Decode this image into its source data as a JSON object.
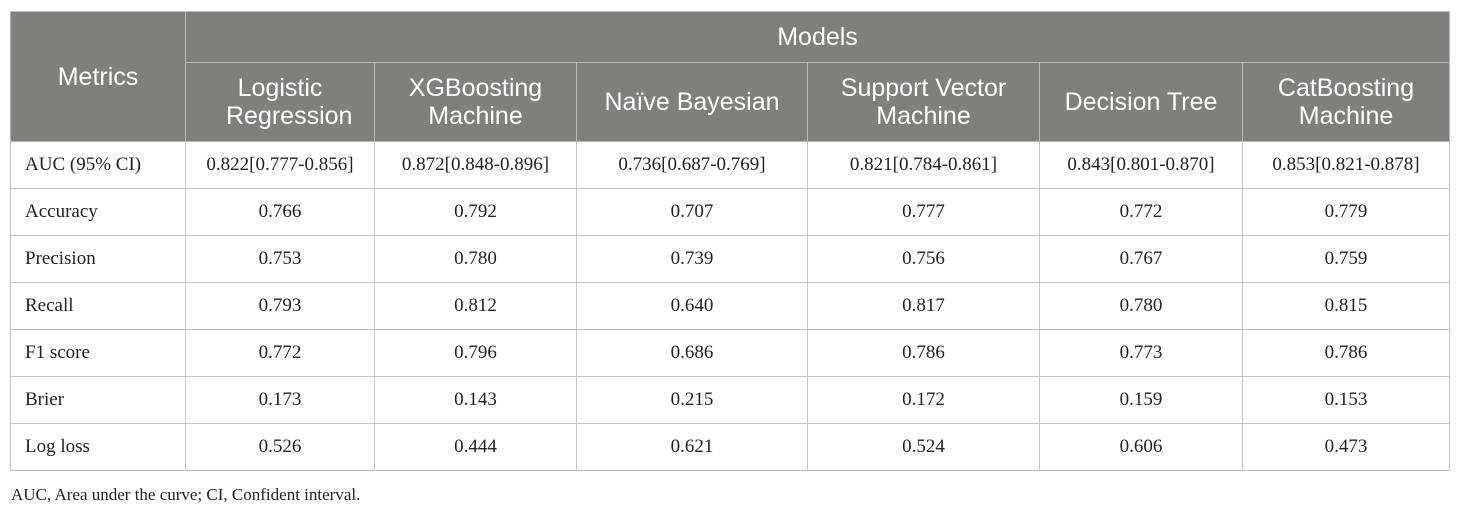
{
  "table": {
    "metrics_header": "Metrics",
    "models_header": "Models",
    "models": [
      "Logistic Regression",
      "XGBoosting Machine",
      "Naïve Bayesian",
      "Support Vector Machine",
      "Decision Tree",
      "CatBoosting Machine"
    ],
    "rows": [
      {
        "metric": "AUC (95% CI)",
        "values": [
          "0.822[0.777-0.856]",
          "0.872[0.848-0.896]",
          "0.736[0.687-0.769]",
          "0.821[0.784-0.861]",
          "0.843[0.801-0.870]",
          "0.853[0.821-0.878]"
        ]
      },
      {
        "metric": "Accuracy",
        "values": [
          "0.766",
          "0.792",
          "0.707",
          "0.777",
          "0.772",
          "0.779"
        ]
      },
      {
        "metric": "Precision",
        "values": [
          "0.753",
          "0.780",
          "0.739",
          "0.756",
          "0.767",
          "0.759"
        ]
      },
      {
        "metric": "Recall",
        "values": [
          "0.793",
          "0.812",
          "0.640",
          "0.817",
          "0.780",
          "0.815"
        ]
      },
      {
        "metric": "F1 score",
        "values": [
          "0.772",
          "0.796",
          "0.686",
          "0.786",
          "0.773",
          "0.786"
        ]
      },
      {
        "metric": "Brier",
        "values": [
          "0.173",
          "0.143",
          "0.215",
          "0.172",
          "0.159",
          "0.153"
        ]
      },
      {
        "metric": "Log loss",
        "values": [
          "0.526",
          "0.444",
          "0.621",
          "0.524",
          "0.606",
          "0.473"
        ]
      }
    ]
  },
  "footnote": "AUC, Area under the curve; CI, Confident interval.",
  "colors": {
    "header_bg": "#7f7f7e",
    "header_text": "#ffffff",
    "grid": "#c4c4c4"
  }
}
